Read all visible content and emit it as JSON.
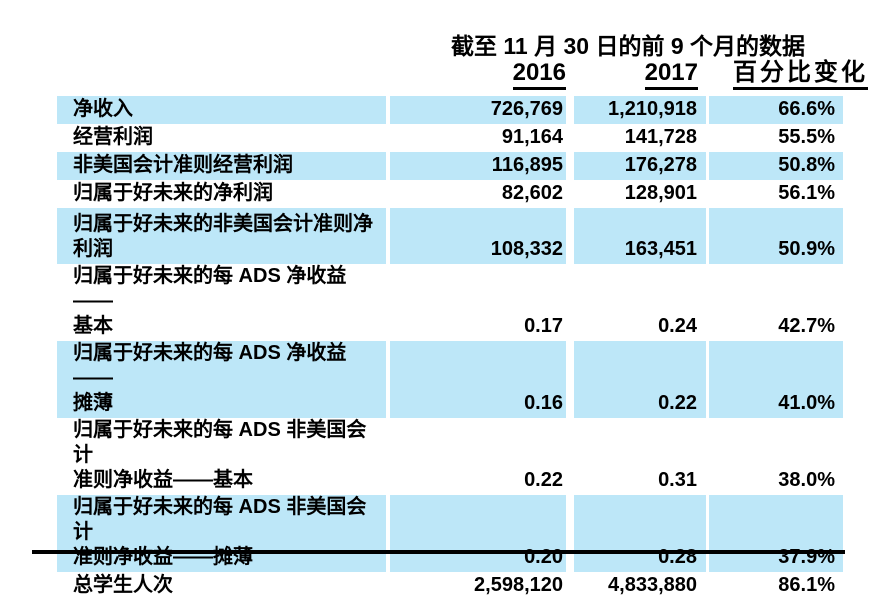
{
  "table": {
    "period_header": "截至 11 月 30 日的前 9 个月的数据",
    "columns": [
      "2016",
      "2017",
      "百分比变化"
    ],
    "rows": [
      {
        "label": "净收入",
        "y2016": "726,769",
        "y2017": "1,210,918",
        "pct_change": "66.6%"
      },
      {
        "label": "经营利润",
        "y2016": "91,164",
        "y2017": "141,728",
        "pct_change": "55.5%"
      },
      {
        "label": "非美国会计准则经营利润",
        "y2016": "116,895",
        "y2017": "176,278",
        "pct_change": "50.8%"
      },
      {
        "label": "归属于好未来的净利润",
        "y2016": "82,602",
        "y2017": "128,901",
        "pct_change": "56.1%"
      },
      {
        "label": "归属于好未来的非美国会计准则净\n利润",
        "y2016": "108,332",
        "y2017": "163,451",
        "pct_change": "50.9%"
      },
      {
        "label": "归属于好未来的每 ADS 净收益——\n基本",
        "y2016": "0.17",
        "y2017": "0.24",
        "pct_change": "42.7%"
      },
      {
        "label": "归属于好未来的每 ADS 净收益——\n摊薄",
        "y2016": "0.16",
        "y2017": "0.22",
        "pct_change": "41.0%"
      },
      {
        "label": "归属于好未来的每 ADS 非美国会计\n准则净收益——基本",
        "y2016": "0.22",
        "y2017": "0.31",
        "pct_change": "38.0%"
      },
      {
        "label": "归属于好未来的每 ADS 非美国会计\n准则净收益——摊薄",
        "y2016": "0.20",
        "y2017": "0.28",
        "pct_change": "37.9%"
      },
      {
        "label": "总学生人次",
        "y2016": "2,598,120",
        "y2017": "4,833,880",
        "pct_change": "86.1%"
      }
    ]
  },
  "colors": {
    "row_highlight": "#BDE7F8",
    "rule": "#000000"
  }
}
